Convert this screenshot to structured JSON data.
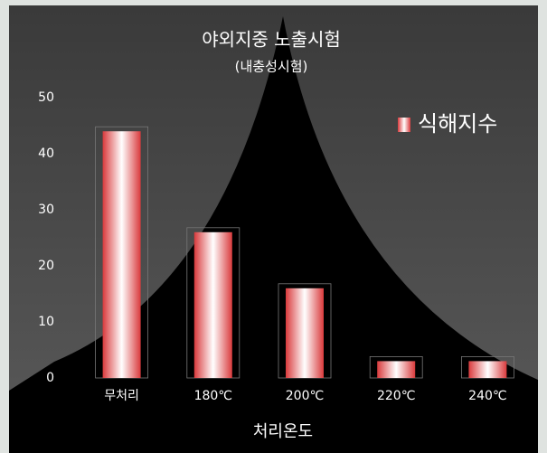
{
  "chart_data": {
    "type": "bar",
    "title": "야외지중 노출시험",
    "subtitle": "(내충성시험)",
    "x_label": "처리온도",
    "categories": [
      "무처리",
      "180℃",
      "200℃",
      "220℃",
      "240℃"
    ],
    "series": [
      {
        "name": "식해지수",
        "color": "#d93a3c",
        "values": [
          44,
          26,
          16,
          3,
          3
        ]
      }
    ],
    "ylim": [
      0,
      50
    ],
    "yticks": [
      0,
      10,
      20,
      30,
      40,
      50
    ],
    "legend": "top-right"
  }
}
